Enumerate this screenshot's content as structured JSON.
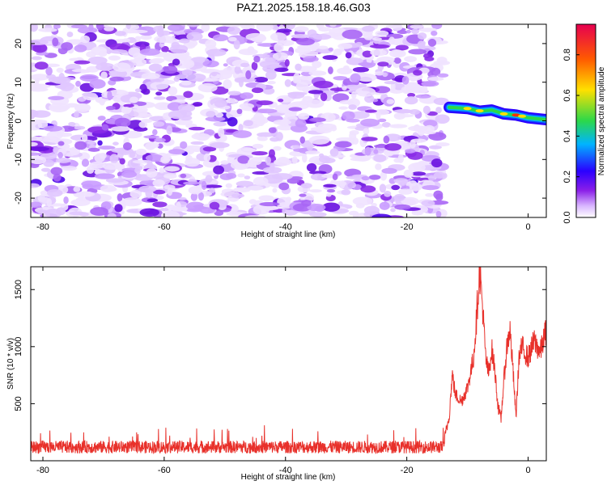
{
  "title": "PAZ1.2025.158.18.46.G03",
  "chart_data": [
    {
      "type": "heatmap",
      "xlabel": "Height of straight line (km)",
      "ylabel": "Frequency (Hz)",
      "xlim": [
        -82,
        3
      ],
      "ylim": [
        -25,
        25
      ],
      "xticks": [
        -80,
        -60,
        -40,
        -20,
        0
      ],
      "xtick_labels": [
        "-80",
        "-60",
        "-40",
        "-20",
        "0"
      ],
      "yticks": [
        20,
        10,
        0,
        -10,
        -20
      ],
      "ytick_labels": [
        "20",
        "10",
        "0",
        "-10",
        "-20"
      ],
      "colorbar": {
        "label": "Normalized spectral amplitude",
        "range": [
          0,
          0.95
        ],
        "ticks": [
          "0.0",
          "0.2",
          "0.4",
          "0.6",
          "0.8"
        ],
        "tick_values": [
          0.0,
          0.2,
          0.4,
          0.6,
          0.8
        ],
        "colors": [
          "#ffffff",
          "#8a1fe8",
          "#2a00ff",
          "#00b4ff",
          "#2bd84a",
          "#ffe000",
          "#ff5a00",
          "#e60050"
        ]
      },
      "signal_ridge": [
        {
          "x": -13,
          "y": 3.5
        },
        {
          "x": -10,
          "y": 3.2
        },
        {
          "x": -8,
          "y": 2.5
        },
        {
          "x": -6,
          "y": 2.8
        },
        {
          "x": -4,
          "y": 1.8
        },
        {
          "x": -2,
          "y": 1.5
        },
        {
          "x": 0,
          "y": 0.8
        },
        {
          "x": 3,
          "y": 0.3
        }
      ],
      "noise_region_xlim": [
        -82,
        -14
      ]
    },
    {
      "type": "line",
      "xlabel": "Height of straight line (km)",
      "ylabel": "SNR (10 * v/v)",
      "xlim": [
        -82,
        3
      ],
      "ylim": [
        0,
        1700
      ],
      "xticks": [
        -80,
        -60,
        -40,
        -20,
        0
      ],
      "xtick_labels": [
        "-80",
        "-60",
        "-40",
        "-20",
        "0"
      ],
      "yticks": [
        500,
        1000,
        1500
      ],
      "ytick_labels": [
        "500",
        "1000",
        "1500"
      ],
      "color": "#e8302a",
      "series": [
        {
          "baseline_profile": [
            {
              "x": -82,
              "y": 120
            },
            {
              "x": -14,
              "y": 120
            }
          ],
          "key_points": [
            {
              "x": -14,
              "y": 120
            },
            {
              "x": -13,
              "y": 400
            },
            {
              "x": -12.5,
              "y": 760
            },
            {
              "x": -12,
              "y": 580
            },
            {
              "x": -11,
              "y": 520
            },
            {
              "x": -10,
              "y": 640
            },
            {
              "x": -9,
              "y": 900
            },
            {
              "x": -8.5,
              "y": 1250
            },
            {
              "x": -8,
              "y": 1680
            },
            {
              "x": -7.5,
              "y": 1350
            },
            {
              "x": -7,
              "y": 900
            },
            {
              "x": -6.5,
              "y": 760
            },
            {
              "x": -6,
              "y": 980
            },
            {
              "x": -5.5,
              "y": 800
            },
            {
              "x": -5,
              "y": 500
            },
            {
              "x": -4.5,
              "y": 350
            },
            {
              "x": -4,
              "y": 700
            },
            {
              "x": -3.5,
              "y": 1000
            },
            {
              "x": -3,
              "y": 1150
            },
            {
              "x": -2.5,
              "y": 800
            },
            {
              "x": -2,
              "y": 380
            },
            {
              "x": -1.5,
              "y": 900
            },
            {
              "x": -1,
              "y": 1000
            },
            {
              "x": 0,
              "y": 900
            },
            {
              "x": 1,
              "y": 1050
            },
            {
              "x": 2,
              "y": 950
            },
            {
              "x": 3,
              "y": 1150
            }
          ]
        }
      ]
    }
  ]
}
